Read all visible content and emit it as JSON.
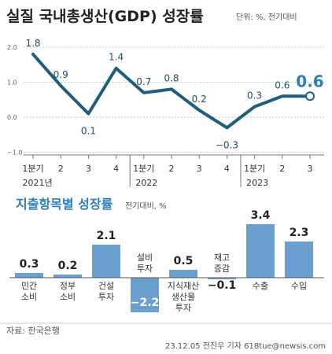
{
  "header": {
    "title": "실질 국내총생산(GDP) 성장률",
    "unit": "단위: %, 전기대비"
  },
  "chart_data": [
    {
      "type": "line",
      "title": "실질 국내총생산(GDP) 성장률",
      "unit_note": "단위: %, 전기대비",
      "x": [
        "1분기",
        "2",
        "3",
        "4",
        "1분기",
        "2",
        "3",
        "4",
        "1분기",
        "2",
        "3"
      ],
      "year_labels": [
        "2021년",
        "2022",
        "2023"
      ],
      "y_ticks": [
        "2.0",
        "1.0",
        "0.0",
        "−1.0"
      ],
      "ylim": [
        -1.0,
        2.0
      ],
      "grid": true,
      "color": "#1f5f7e",
      "values": [
        1.8,
        0.9,
        0.1,
        1.4,
        0.7,
        0.8,
        0.2,
        -0.3,
        0.3,
        0.6,
        0.6
      ],
      "value_labels": [
        "1.8",
        "0.9",
        "0.1",
        "1.4",
        "0.7",
        "0.8",
        "0.2",
        "−0.3",
        "0.3",
        "0.6",
        "0.6"
      ],
      "highlight_last_color": "#2e7fbf"
    },
    {
      "type": "bar",
      "title": "지출항목별 성장률",
      "unit_note": "전기대비, %",
      "categories": [
        "민간\n소비",
        "정부\n소비",
        "건설\n투자",
        "설비\n투자",
        "지식재산\n생산물\n투자",
        "재고\n증감",
        "수출",
        "수입"
      ],
      "values": [
        0.3,
        0.2,
        2.1,
        -2.2,
        0.5,
        -0.1,
        3.4,
        2.3
      ],
      "value_labels": [
        "0.3",
        "0.2",
        "2.1",
        "−2.2",
        "0.5",
        "−0.1",
        "3.4",
        "2.3"
      ],
      "bar_color": "#6a9fd0"
    }
  ],
  "footer": {
    "source": "자료: 한국은행",
    "credit": "23.12.05 전진우 기자 618tue@newsis.com"
  }
}
